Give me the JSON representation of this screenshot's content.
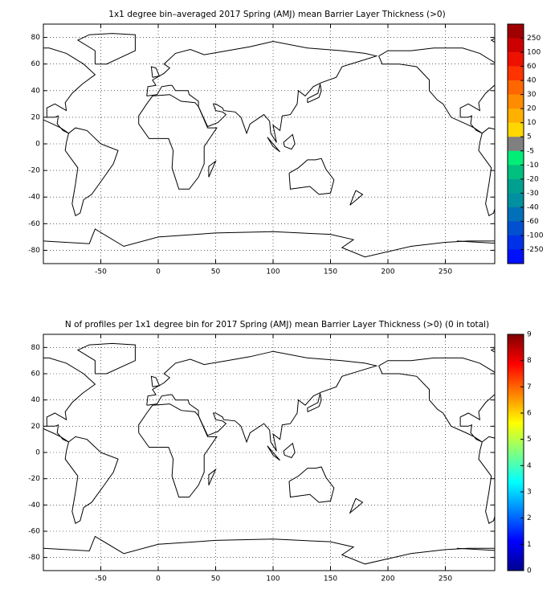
{
  "maps": [
    {
      "title": "1x1 degree bin–averaged 2017 Spring (AMJ) mean Barrier Layer Thickness (>0)",
      "xlim": [
        -100,
        293
      ],
      "ylim": [
        -90,
        90
      ],
      "xticks": [
        -50,
        0,
        50,
        100,
        150,
        200,
        250
      ],
      "yticks": [
        -80,
        -60,
        -40,
        -20,
        0,
        20,
        40,
        60,
        80
      ],
      "grid": true,
      "colorbar": {
        "ticks": [
          250,
          100,
          60,
          40,
          30,
          20,
          10,
          5,
          -5,
          -10,
          -20,
          -30,
          -40,
          -60,
          -100,
          -250
        ],
        "colors": [
          "#a00000",
          "#cc0000",
          "#ee1100",
          "#ff3300",
          "#ff6600",
          "#ff8c00",
          "#ffb000",
          "#ffd700",
          "#808080",
          "#00ee77",
          "#00c080",
          "#00a090",
          "#0090a0",
          "#0070b8",
          "#0050d0",
          "#0030e8",
          "#0010ff"
        ]
      }
    },
    {
      "title": "N of profiles per 1x1 degree bin for 2017 Spring (AMJ) mean Barrier Layer Thickness (>0) (0 in total)",
      "xlim": [
        -100,
        293
      ],
      "ylim": [
        -90,
        90
      ],
      "xticks": [
        -50,
        0,
        50,
        100,
        150,
        200,
        250
      ],
      "yticks": [
        -80,
        -60,
        -40,
        -20,
        0,
        20,
        40,
        60,
        80
      ],
      "grid": true,
      "colorbar": {
        "lim": [
          0,
          9
        ],
        "ticks": [
          0,
          1,
          2,
          3,
          4,
          5,
          6,
          7,
          8,
          9
        ],
        "colors": [
          "#00008f",
          "#0000ff",
          "#0080ff",
          "#00ffff",
          "#80ff80",
          "#ffff00",
          "#ff8000",
          "#ff0000",
          "#800000"
        ]
      }
    }
  ]
}
